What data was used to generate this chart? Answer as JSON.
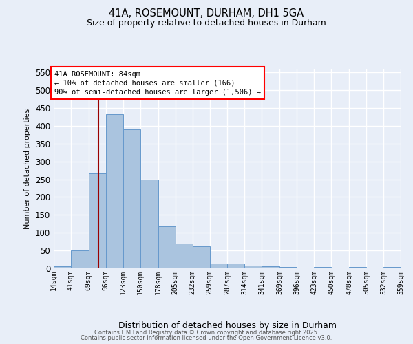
{
  "title": "41A, ROSEMOUNT, DURHAM, DH1 5GA",
  "subtitle": "Size of property relative to detached houses in Durham",
  "xlabel": "Distribution of detached houses by size in Durham",
  "ylabel": "Number of detached properties",
  "bar_color": "#aac4df",
  "bar_edge_color": "#6699cc",
  "bg_color": "#e8eef8",
  "grid_color": "#ffffff",
  "red_line_x": 84,
  "annotation_title": "41A ROSEMOUNT: 84sqm",
  "annotation_line1": "← 10% of detached houses are smaller (166)",
  "annotation_line2": "90% of semi-detached houses are larger (1,506) →",
  "bin_edges": [
    14,
    41,
    69,
    96,
    123,
    150,
    178,
    205,
    232,
    259,
    287,
    314,
    341,
    369,
    396,
    423,
    450,
    478,
    505,
    532,
    559
  ],
  "bar_heights": [
    5,
    51,
    267,
    433,
    390,
    250,
    117,
    69,
    61,
    14,
    14,
    8,
    6,
    3,
    0,
    3,
    0,
    3,
    0,
    3
  ],
  "ylim": [
    0,
    560
  ],
  "yticks": [
    0,
    50,
    100,
    150,
    200,
    250,
    300,
    350,
    400,
    450,
    500,
    550
  ],
  "footer_line1": "Contains HM Land Registry data © Crown copyright and database right 2025.",
  "footer_line2": "Contains public sector information licensed under the Open Government Licence v3.0."
}
